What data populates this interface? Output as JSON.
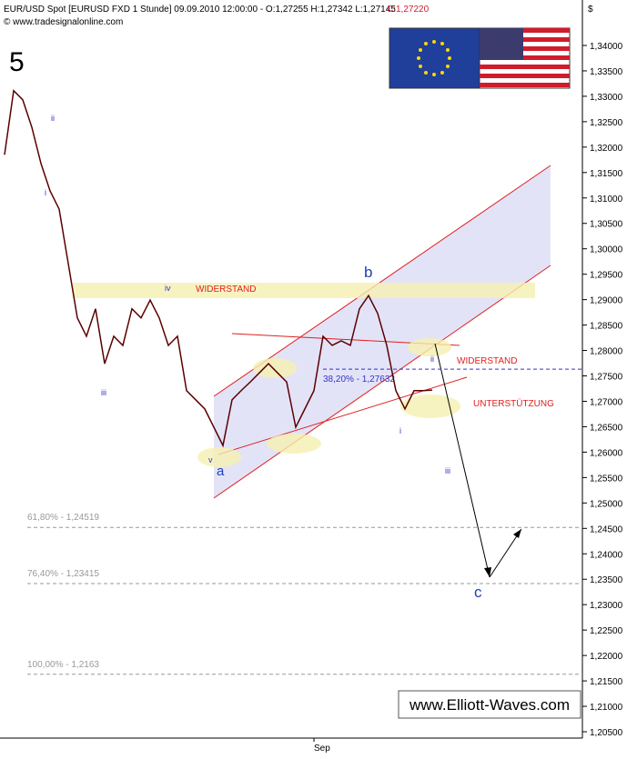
{
  "chart_data": {
    "type": "line",
    "header": "EUR/USD Spot [EURUSD FXD  1 Stunde] 09.09.2010 12:00:00 - O:1,27255 H:1,27342 L:1,27145",
    "close_label": "C:1,27220",
    "copyright": "© www.tradesignalonline.com",
    "wave_degree": "5",
    "currency": "$",
    "watermark": "www.Elliott-Waves.com",
    "categories": [
      null,
      null,
      null,
      null,
      null,
      null,
      null,
      null,
      null,
      null,
      null,
      null,
      null,
      null,
      null,
      null,
      null,
      null,
      null,
      null,
      null,
      null,
      null,
      null,
      null,
      null,
      null,
      null,
      null,
      null,
      null,
      null,
      null,
      null,
      "Sep",
      null,
      null,
      null,
      null,
      null,
      null,
      null,
      null,
      null,
      null,
      null,
      null,
      null
    ],
    "series": [
      {
        "name": "EUR/USD",
        "color": "#5a0000",
        "values": [
          1.3185,
          1.3311,
          1.3293,
          1.3239,
          1.3168,
          1.3114,
          1.3078,
          1.2971,
          1.2864,
          1.2828,
          1.2882,
          1.2774,
          1.2828,
          1.281,
          1.2882,
          1.2864,
          1.2899,
          1.2864,
          1.281,
          1.2828,
          1.2721,
          1.2703,
          1.2685,
          1.2649,
          1.2613,
          1.2703,
          1.2721,
          1.2738,
          1.2756,
          1.2774,
          1.2756,
          1.2738,
          1.2649,
          1.2685,
          1.2721,
          1.2828,
          1.281,
          1.2819,
          1.281,
          1.2882,
          1.2908,
          1.2873,
          1.281,
          1.2721,
          1.2685,
          1.2721,
          1.2721,
          1.2722
        ]
      }
    ],
    "ylim": [
      1.20375,
      1.34894
    ],
    "yticks": [
      {
        "value": 1.34,
        "label": "1,34000"
      },
      {
        "value": 1.335,
        "label": "1,33500"
      },
      {
        "value": 1.33,
        "label": "1,33000"
      },
      {
        "value": 1.325,
        "label": "1,32500"
      },
      {
        "value": 1.32,
        "label": "1,32000"
      },
      {
        "value": 1.315,
        "label": "1,31500"
      },
      {
        "value": 1.31,
        "label": "1,31000"
      },
      {
        "value": 1.305,
        "label": "1,30500"
      },
      {
        "value": 1.3,
        "label": "1,30000"
      },
      {
        "value": 1.295,
        "label": "1,29500"
      },
      {
        "value": 1.29,
        "label": "1,29000"
      },
      {
        "value": 1.285,
        "label": "1,28500"
      },
      {
        "value": 1.28,
        "label": "1,28000"
      },
      {
        "value": 1.275,
        "label": "1,27500"
      },
      {
        "value": 1.27,
        "label": "1,27000"
      },
      {
        "value": 1.265,
        "label": "1,26500"
      },
      {
        "value": 1.26,
        "label": "1,26000"
      },
      {
        "value": 1.255,
        "label": "1,25500"
      },
      {
        "value": 1.25,
        "label": "1,25000"
      },
      {
        "value": 1.245,
        "label": "1,24500"
      },
      {
        "value": 1.24,
        "label": "1,24000"
      },
      {
        "value": 1.235,
        "label": "1,23500"
      },
      {
        "value": 1.23,
        "label": "1,23000"
      },
      {
        "value": 1.225,
        "label": "1,22500"
      },
      {
        "value": 1.22,
        "label": "1,22000"
      },
      {
        "value": 1.215,
        "label": "1,21500"
      },
      {
        "value": 1.21,
        "label": "1,21000"
      },
      {
        "value": 1.205,
        "label": "1,20500"
      }
    ],
    "levels": [
      {
        "value": 1.27632,
        "label": "38,20% - 1,27632",
        "color": "#3333cc"
      },
      {
        "value": 1.24519,
        "label": "61,80% - 1,24519",
        "color": "#999999"
      },
      {
        "value": 1.23415,
        "label": "76,40% - 1,23415",
        "color": "#999999"
      },
      {
        "value": 1.2163,
        "label": "100,00% - 1,2163",
        "color": "#999999"
      }
    ],
    "annotations": [
      "ii",
      "i",
      "iii",
      "iv",
      "v",
      "a",
      "b",
      "i",
      "ii",
      "iii",
      "c",
      "WIDERSTAND",
      "WIDERSTAND",
      "UNTERSTÜTZUNG"
    ]
  }
}
